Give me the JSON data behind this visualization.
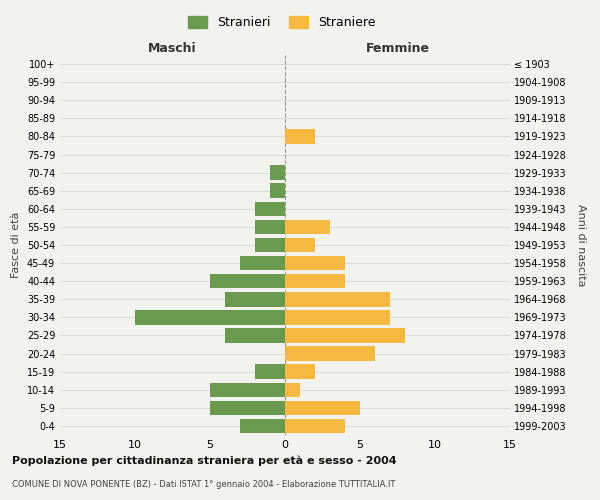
{
  "age_groups": [
    "100+",
    "95-99",
    "90-94",
    "85-89",
    "80-84",
    "75-79",
    "70-74",
    "65-69",
    "60-64",
    "55-59",
    "50-54",
    "45-49",
    "40-44",
    "35-39",
    "30-34",
    "25-29",
    "20-24",
    "15-19",
    "10-14",
    "5-9",
    "0-4"
  ],
  "birth_years": [
    "≤ 1903",
    "1904-1908",
    "1909-1913",
    "1914-1918",
    "1919-1923",
    "1924-1928",
    "1929-1933",
    "1934-1938",
    "1939-1943",
    "1944-1948",
    "1949-1953",
    "1954-1958",
    "1959-1963",
    "1964-1968",
    "1969-1973",
    "1974-1978",
    "1979-1983",
    "1984-1988",
    "1989-1993",
    "1994-1998",
    "1999-2003"
  ],
  "males": [
    0,
    0,
    0,
    0,
    0,
    0,
    1,
    1,
    2,
    2,
    2,
    3,
    5,
    4,
    10,
    4,
    0,
    2,
    5,
    5,
    3
  ],
  "females": [
    0,
    0,
    0,
    0,
    2,
    0,
    0,
    0,
    0,
    3,
    2,
    4,
    4,
    7,
    7,
    8,
    6,
    2,
    1,
    5,
    4
  ],
  "male_color": "#6a9a50",
  "female_color": "#f5b942",
  "title": "Popolazione per cittadinanza straniera per età e sesso - 2004",
  "subtitle": "COMUNE DI NOVA PONENTE (BZ) - Dati ISTAT 1° gennaio 2004 - Elaborazione TUTTITALIA.IT",
  "ylabel_left": "Fasce di età",
  "ylabel_right": "Anni di nascita",
  "xlabel_left": "Maschi",
  "xlabel_right": "Femmine",
  "legend_male": "Stranieri",
  "legend_female": "Straniere",
  "xlim": 15,
  "background_color": "#f2f2ee",
  "bar_height": 0.8
}
